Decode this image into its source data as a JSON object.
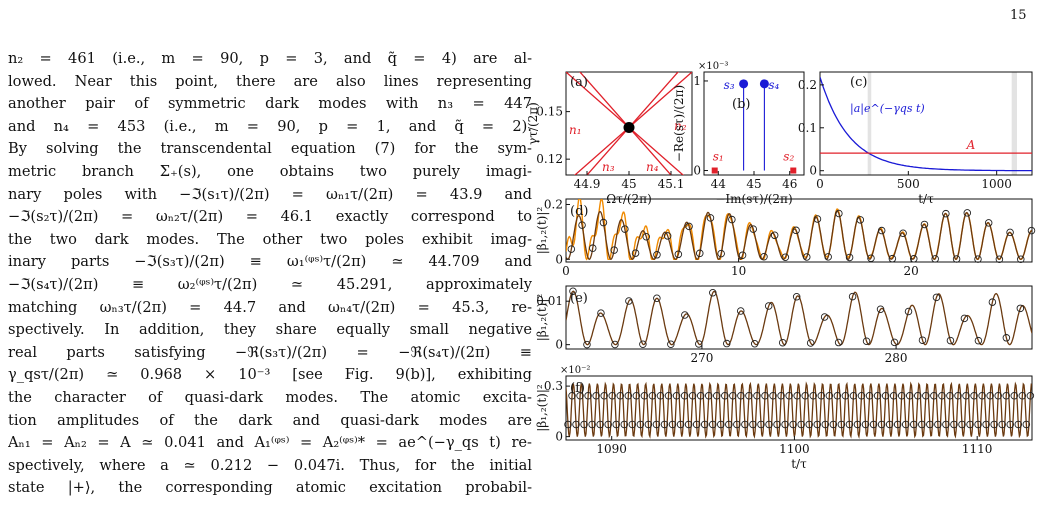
{
  "page": {
    "number": "15"
  },
  "body_text": {
    "lines": [
      "n₂ = 461 (i.e., m = 90, p = 3, and q̃ = 4) are al-",
      "lowed. Near this point, there are also lines representing",
      "another pair of symmetric dark modes with n₃ = 447",
      "and n₄ = 453 (i.e., m = 90, p = 1, and q̃ = 2).",
      "By solving the transcendental equation (7) for the sym-",
      "metric branch Σ₊(s), one obtains two purely imagi-",
      "nary poles with −ℑ(s₁τ)/(2π) = ωₙ₁τ/(2π) = 43.9 and",
      "−ℑ(s₂τ)/(2π) = ωₙ₂τ/(2π) = 46.1 exactly correspond to",
      "the two dark modes. The other two poles exhibit imag-",
      "inary parts −ℑ(s₃τ)/(2π) ≡ ω₁⁽ᵠˢ⁾τ/(2π) ≃ 44.709 and",
      "−ℑ(s₄τ)/(2π) ≡ ω₂⁽ᵠˢ⁾τ/(2π) ≃ 45.291, approximately",
      "matching ωₙ₃τ/(2π) = 44.7 and ωₙ₄τ/(2π) = 45.3, re-",
      "spectively. In addition, they share equally small negative",
      "real parts satisfying −ℜ(s₃τ)/(2π) = −ℜ(s₄τ)/(2π) ≡",
      "γ_qsτ/(2π) ≃ 0.968 × 10⁻³ [see Fig. 9(b)], exhibiting",
      "the character of quasi-dark modes. The atomic excita-",
      "tion amplitudes of the dark and quasi-dark modes are",
      "Aₙ₁ = Aₙ₂ = A ≃ 0.041 and A₁⁽ᵠˢ⁾ = A₂⁽ᵠˢ⁾* = ae^(−γ_qs t) re-",
      "spectively, where a ≃ 0.212 − 0.047i. Thus, for the initial",
      "state |+⟩, the corresponding atomic excitation probabil-"
    ]
  },
  "figure": {
    "colors": {
      "red": "#e0202a",
      "blue": "#1a1ad6",
      "orange": "#f08a00",
      "brown": "#6b3a10",
      "gray": "#e3e3e3"
    },
    "panel_a": {
      "label": "(a)",
      "xlabel": "Ωτ/(2π)",
      "ylabel": "γτ/(2π)",
      "xticks": [
        "44.9",
        "45",
        "45.1"
      ],
      "yticks": [
        "0.15",
        "0.12"
      ],
      "line_labels": [
        "n₁",
        "n₂",
        "n₃",
        "n₄"
      ]
    },
    "panel_b": {
      "label": "(b)",
      "xlabel": "−Im(sτ)/(2π)",
      "ylabel": "−Re(sτ)/(2π)",
      "multiplier": "×10⁻³",
      "xticks": [
        "44",
        "45",
        "46"
      ],
      "yticks": [
        "1",
        "0"
      ],
      "point_labels": [
        "s₁",
        "s₂",
        "s₃",
        "s₄"
      ]
    },
    "panel_c": {
      "label": "(c)",
      "xlabel": "t/τ",
      "xticks": [
        "0",
        "500",
        "1000"
      ],
      "yticks": [
        "0.2",
        "0.1",
        "0"
      ],
      "curve_label_blue": "|a|e^(−γqs t)",
      "curve_label_red": "A"
    },
    "panel_d": {
      "label": "(d)",
      "ylabel": "|β₁,₂(t)|²",
      "xticks": [
        "0",
        "10",
        "20"
      ],
      "yticks": [
        "0.2",
        "0"
      ]
    },
    "panel_e": {
      "label": "(e)",
      "ylabel": "|β₁,₂(t)|²",
      "xticks": [
        "270",
        "280"
      ],
      "yticks": [
        "0.01",
        "0"
      ]
    },
    "panel_f": {
      "label": "(f)",
      "ylabel": "|β₁,₂(t)|²",
      "multiplier": "×10⁻²",
      "xticks": [
        "1090",
        "1100",
        "1110"
      ],
      "yticks": [
        "0.3",
        "0"
      ],
      "xlabel": "t/τ"
    }
  },
  "chart_data": [
    {
      "type": "line",
      "panel": "a",
      "xlim": [
        44.85,
        45.15
      ],
      "ylim": [
        0.11,
        0.175
      ],
      "series": [
        {
          "name": "n₁",
          "x": [
            44.85,
            45.15
          ],
          "y": [
            0.105,
            0.175
          ]
        },
        {
          "name": "n₂",
          "x": [
            44.85,
            45.15
          ],
          "y": [
            0.175,
            0.105
          ]
        },
        {
          "name": "n₃",
          "x": [
            44.85,
            45.15
          ],
          "y": [
            0.185,
            0.095
          ]
        },
        {
          "name": "n₄",
          "x": [
            44.85,
            45.15
          ],
          "y": [
            0.095,
            0.185
          ]
        }
      ],
      "marker": {
        "x": 45.0,
        "y": 0.14
      }
    },
    {
      "type": "scatter",
      "panel": "b",
      "xlim": [
        43.6,
        46.4
      ],
      "ylim": [
        -0.05,
        1.1
      ],
      "points": [
        {
          "name": "s₁",
          "x": 43.9,
          "y": 0.0
        },
        {
          "name": "s₂",
          "x": 46.1,
          "y": 0.0
        },
        {
          "name": "s₃",
          "x": 44.709,
          "y": 0.968
        },
        {
          "name": "s₄",
          "x": 45.291,
          "y": 0.968
        }
      ]
    },
    {
      "type": "line",
      "panel": "c",
      "xlim": [
        0,
        1200
      ],
      "ylim": [
        -0.01,
        0.23
      ],
      "amplitude": 0.218,
      "decay_rate": 0.00608,
      "constant": 0.041,
      "shaded_intervals": [
        [
          270,
          290
        ],
        [
          1085,
          1115
        ]
      ]
    },
    {
      "type": "line",
      "panel": "d",
      "xlim": [
        0,
        27
      ],
      "ylim": [
        -0.01,
        0.22
      ]
    },
    {
      "type": "line",
      "panel": "e",
      "xlim": [
        263,
        287
      ],
      "ylim": [
        -0.001,
        0.0135
      ]
    },
    {
      "type": "line",
      "panel": "f",
      "xlim": [
        1087.5,
        1113
      ],
      "ylim": [
        -0.02,
        0.36
      ]
    }
  ]
}
